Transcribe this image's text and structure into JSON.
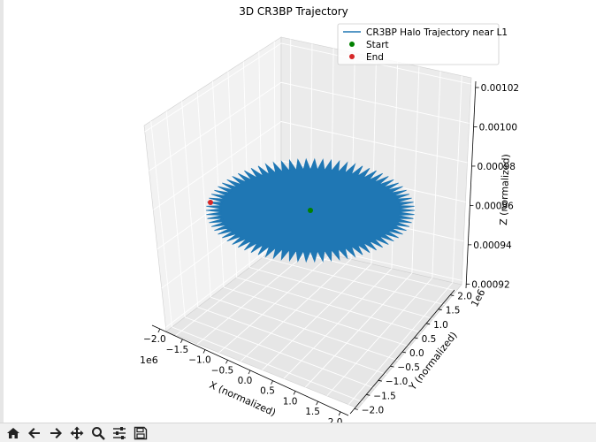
{
  "chart_data": {
    "type": "line",
    "projection": "3d",
    "title": "3D CR3BP Trajectory",
    "xlabel": "X (normalized)",
    "ylabel": "Y (normalized)",
    "zlabel": "Z (normalized)",
    "x_offset_label": "1e6",
    "y_offset_label": "1e6",
    "xticks": [
      "−2.0",
      "−1.5",
      "−1.0",
      "−0.5",
      "0.0",
      "0.5",
      "1.0",
      "1.5",
      "2.0"
    ],
    "yticks": [
      "−2.0",
      "−1.5",
      "−1.0",
      "−0.5",
      "0.0",
      "0.5",
      "1.0",
      "1.5",
      "2.0"
    ],
    "zticks": [
      "0.00092",
      "0.00094",
      "0.00096",
      "0.00098",
      "0.00100",
      "0.00102"
    ],
    "xlim": [
      -2.2,
      2.2
    ],
    "ylim": [
      -2.2,
      2.2
    ],
    "zlim": [
      0.00092,
      0.00103
    ],
    "grid": true,
    "legend_position": "upper-right",
    "series": [
      {
        "name": "CR3BP Halo Trajectory near L1",
        "kind": "line",
        "color": "#1f77b4",
        "shape": "star-like planar spiral oscillating about the origin",
        "x_range": [
          -1.6,
          1.6
        ],
        "y_range": [
          -1.6,
          1.6
        ],
        "z": 0.00096
      },
      {
        "name": "Start",
        "kind": "point",
        "color": "#008000",
        "x": 0.0,
        "y": 0.0,
        "z": 0.00096
      },
      {
        "name": "End",
        "kind": "point",
        "color": "#d62728",
        "x": -1.6,
        "y": 0.0,
        "z": 0.00096
      }
    ]
  },
  "toolbar": {
    "buttons": [
      {
        "name": "home-button",
        "icon": "home-icon"
      },
      {
        "name": "back-button",
        "icon": "arrow-left-icon"
      },
      {
        "name": "forward-button",
        "icon": "arrow-right-icon"
      },
      {
        "name": "pan-button",
        "icon": "move-icon"
      },
      {
        "name": "zoom-button",
        "icon": "magnifier-icon"
      },
      {
        "name": "configure-button",
        "icon": "sliders-icon"
      },
      {
        "name": "save-button",
        "icon": "floppy-icon"
      }
    ]
  }
}
